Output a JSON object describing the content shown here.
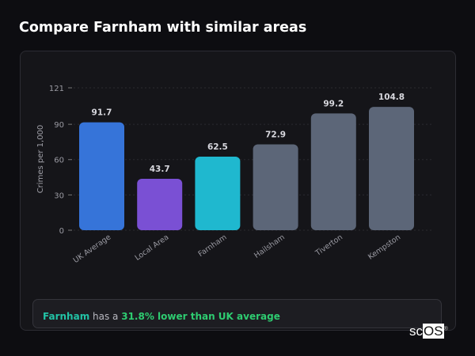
{
  "title": "Compare Farnham with similar areas",
  "chart_data": {
    "type": "bar",
    "title": "",
    "ylabel": "Crimes per 1,000",
    "xlabel": "",
    "ylim": [
      0,
      121
    ],
    "yticks": [
      0,
      30,
      60,
      90,
      121
    ],
    "grid": true,
    "categories": [
      "UK Average",
      "Local Area",
      "Farnham",
      "Hailsham",
      "Tiverton",
      "Kempston"
    ],
    "values": [
      91.7,
      43.7,
      62.5,
      72.9,
      99.2,
      104.8
    ],
    "colors": [
      "#3674d9",
      "#7a50d4",
      "#1fb8cf",
      "#5c6678",
      "#5c6678",
      "#5c6678"
    ]
  },
  "summary": {
    "area": "Farnham",
    "mid": " has a ",
    "highlight": "31.8% lower than UK average"
  },
  "logo": "scOS"
}
